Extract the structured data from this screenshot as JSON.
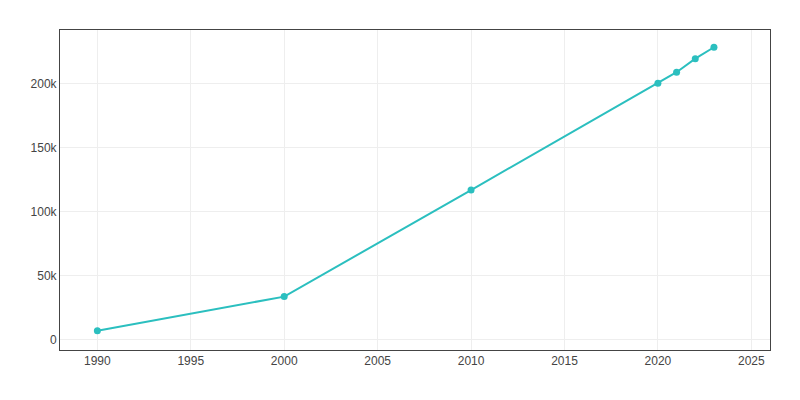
{
  "chart_data": {
    "type": "line",
    "x": [
      1990,
      2000,
      2010,
      2020,
      2021,
      2022,
      2023
    ],
    "values": [
      6992,
      33714,
      116989,
      200490,
      209000,
      219587,
      228522
    ],
    "color": "#2bbfbf",
    "marker": "circle",
    "xlim": [
      1988,
      2026
    ],
    "xticks": [
      1990,
      1995,
      2000,
      2005,
      2010,
      2015,
      2020,
      2025
    ],
    "ylim": [
      -8000,
      242000
    ],
    "yticks": [
      0,
      {
        "value": 50000,
        "label": "50k"
      },
      {
        "value": 100000,
        "label": "100k"
      },
      {
        "value": 150000,
        "label": "150k"
      },
      {
        "value": 200000,
        "label": "200k"
      }
    ],
    "grid": true
  }
}
